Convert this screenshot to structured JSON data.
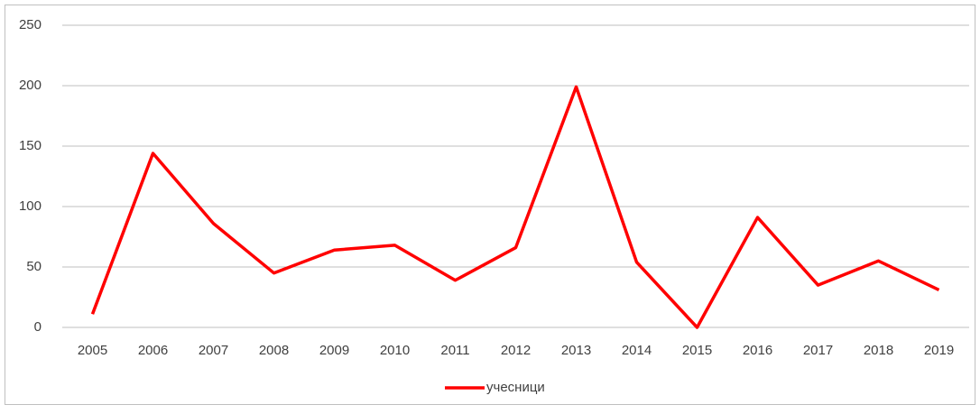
{
  "chart_data": {
    "type": "line",
    "categories": [
      "2005",
      "2006",
      "2007",
      "2008",
      "2009",
      "2010",
      "2011",
      "2012",
      "2013",
      "2014",
      "2015",
      "2016",
      "2017",
      "2018",
      "2019"
    ],
    "series": [
      {
        "name": "учесници",
        "color": "#ff0000",
        "values": [
          11,
          144,
          86,
          45,
          64,
          68,
          39,
          66,
          199,
          54,
          0,
          91,
          35,
          55,
          31
        ]
      }
    ],
    "ylim": [
      0,
      250
    ],
    "yticks": [
      0,
      50,
      100,
      150,
      200,
      250
    ],
    "grid": true,
    "legend": "bottom"
  }
}
